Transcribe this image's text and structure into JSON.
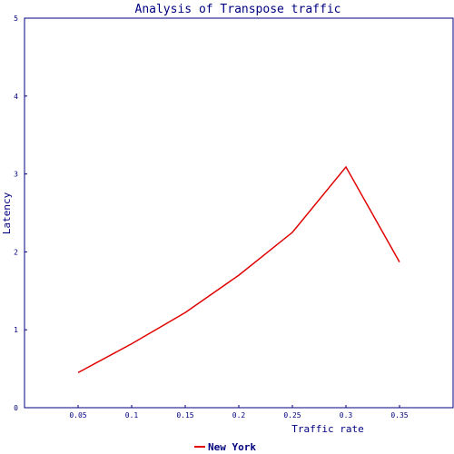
{
  "chart_data": {
    "type": "line",
    "title": "Analysis of Transpose traffic",
    "xlabel": "Traffic rate",
    "ylabel": "Latency",
    "x_ticks": [
      "0.05",
      "0.1",
      "0.15",
      "0.2",
      "0.25",
      "0.3",
      "0.35"
    ],
    "y_ticks": [
      "0",
      "1",
      "2",
      "3",
      "4",
      "5"
    ],
    "xlim": [
      0,
      0.4
    ],
    "ylim": [
      0,
      5
    ],
    "grid": false,
    "legend_position": "bottom-center",
    "series": [
      {
        "name": "New York",
        "color": "#e00000",
        "x": [
          0.05,
          0.1,
          0.15,
          0.2,
          0.25,
          0.3,
          0.35
        ],
        "y": [
          0.45,
          0.82,
          1.22,
          1.7,
          2.25,
          3.09,
          1.87
        ]
      }
    ]
  },
  "colors": {
    "axis": "#000080",
    "text": "#000080"
  }
}
